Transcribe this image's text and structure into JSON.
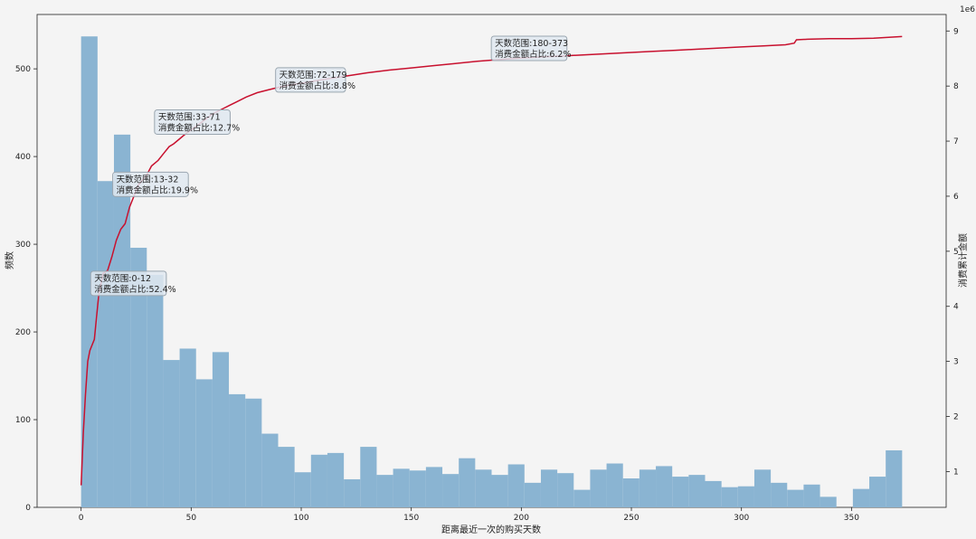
{
  "chart_data": {
    "type": "bar",
    "title": "",
    "xlabel": "距离最近一次的购买天数",
    "ylabel": "频数",
    "y2label": "消费累计金额",
    "y2_offset_text": "1e6",
    "xlim": [
      -20,
      393
    ],
    "ylim": [
      0,
      562
    ],
    "y2lim": [
      0.35,
      9.3
    ],
    "x_ticks": [
      0,
      50,
      100,
      150,
      200,
      250,
      300,
      350
    ],
    "y_ticks": [
      0,
      100,
      200,
      300,
      400,
      500
    ],
    "y2_ticks": [
      1,
      2,
      3,
      4,
      5,
      6,
      7,
      8,
      9
    ],
    "grid": false,
    "histogram": {
      "bin_start": 0,
      "bin_width": 7.46,
      "color": "#8ab4d2",
      "counts": [
        537,
        372,
        425,
        296,
        265,
        168,
        181,
        146,
        177,
        129,
        124,
        84,
        69,
        40,
        60,
        62,
        32,
        69,
        37,
        44,
        42,
        46,
        38,
        56,
        43,
        37,
        49,
        28,
        43,
        39,
        20,
        43,
        50,
        33,
        43,
        47,
        35,
        37,
        30,
        23,
        24,
        43,
        28,
        20,
        26,
        12,
        0,
        21,
        35,
        65
      ]
    },
    "cumulative_line": {
      "color": "#c8102e",
      "x": [
        0,
        1,
        2,
        3,
        4,
        6,
        8,
        10,
        12,
        14,
        16,
        18,
        20,
        22,
        24,
        26,
        28,
        30,
        32,
        35,
        38,
        40,
        42,
        45,
        48,
        50,
        55,
        60,
        65,
        70,
        75,
        80,
        85,
        90,
        95,
        100,
        110,
        120,
        130,
        140,
        150,
        160,
        170,
        180,
        190,
        200,
        210,
        220,
        230,
        240,
        250,
        260,
        270,
        280,
        290,
        300,
        310,
        320,
        324,
        325,
        330,
        340,
        350,
        360,
        373
      ],
      "y": [
        0.75,
        1.7,
        2.4,
        3.0,
        3.2,
        3.4,
        4.2,
        4.6,
        4.65,
        4.9,
        5.2,
        5.4,
        5.5,
        5.8,
        6.0,
        6.2,
        6.3,
        6.4,
        6.55,
        6.65,
        6.8,
        6.9,
        6.95,
        7.05,
        7.15,
        7.2,
        7.35,
        7.5,
        7.6,
        7.7,
        7.8,
        7.88,
        7.93,
        7.98,
        8.02,
        8.05,
        8.12,
        8.18,
        8.24,
        8.29,
        8.33,
        8.37,
        8.41,
        8.45,
        8.48,
        8.51,
        8.53,
        8.55,
        8.57,
        8.59,
        8.61,
        8.63,
        8.65,
        8.67,
        8.69,
        8.71,
        8.73,
        8.75,
        8.78,
        8.84,
        8.85,
        8.86,
        8.86,
        8.87,
        8.9
      ]
    },
    "annotations": [
      {
        "line1": "天数范围:0-12",
        "line2": "消费金额占比:52.4%",
        "x": 6,
        "y": 261
      },
      {
        "line1": "天数范围:13-32",
        "line2": "消费金额占比:19.9%",
        "x": 16,
        "y": 374
      },
      {
        "line1": "天数范围:33-71",
        "line2": "消费金额占比:12.7%",
        "x": 35,
        "y": 445
      },
      {
        "line1": "天数范围:72-179",
        "line2": "消费金额占比:8.8%",
        "x": 90,
        "y": 493
      },
      {
        "line1": "天数范围:180-373",
        "line2": "消费金额占比:6.2%",
        "x": 188,
        "y": 529
      }
    ]
  }
}
